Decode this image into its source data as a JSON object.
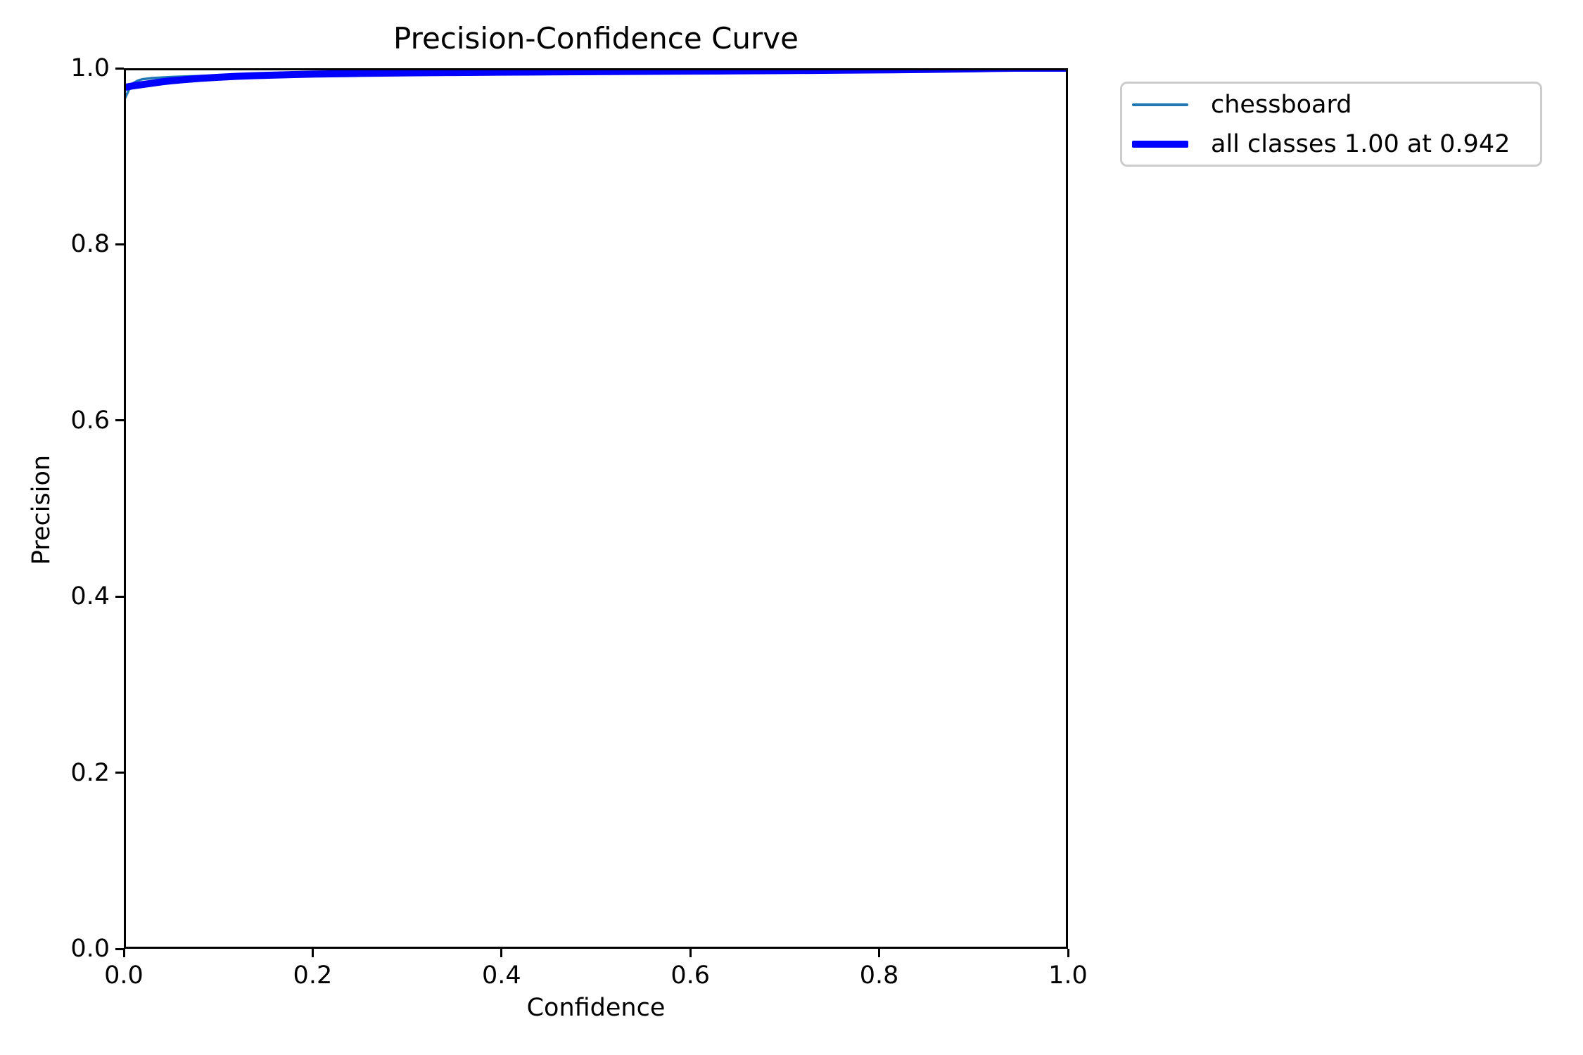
{
  "figure": {
    "background": "#ffffff",
    "axis_color": "#000000",
    "legend_border_color": "#cccccc"
  },
  "chart_data": {
    "type": "line",
    "title": "Precision-Confidence Curve",
    "xlabel": "Confidence",
    "ylabel": "Precision",
    "xlim": [
      0,
      1
    ],
    "ylim": [
      0,
      1
    ],
    "xticks": [
      "0.0",
      "0.2",
      "0.4",
      "0.6",
      "0.8",
      "1.0"
    ],
    "yticks": [
      "0.0",
      "0.2",
      "0.4",
      "0.6",
      "0.8",
      "1.0"
    ],
    "grid": false,
    "legend_position": "outside-upper-right",
    "series": [
      {
        "name": "chessboard",
        "color": "#1f77b4",
        "linewidth": 3.5,
        "points": [
          [
            0.0,
            0.963
          ],
          [
            0.003,
            0.97
          ],
          [
            0.006,
            0.977
          ],
          [
            0.01,
            0.983
          ],
          [
            0.015,
            0.986
          ],
          [
            0.02,
            0.9875
          ],
          [
            0.03,
            0.9888
          ],
          [
            0.05,
            0.99
          ],
          [
            0.07,
            0.9908
          ],
          [
            0.1,
            0.9916
          ],
          [
            0.13,
            0.9922
          ],
          [
            0.16,
            0.9927
          ],
          [
            0.2,
            0.9933
          ],
          [
            0.25,
            0.9941
          ],
          [
            0.3,
            0.9947
          ],
          [
            0.35,
            0.9951
          ],
          [
            0.4,
            0.9955
          ],
          [
            0.45,
            0.9958
          ],
          [
            0.5,
            0.9961
          ],
          [
            0.55,
            0.9964
          ],
          [
            0.6,
            0.9967
          ],
          [
            0.65,
            0.997
          ],
          [
            0.7,
            0.9973
          ],
          [
            0.75,
            0.9977
          ],
          [
            0.8,
            0.9981
          ],
          [
            0.85,
            0.9986
          ],
          [
            0.9,
            0.9993
          ],
          [
            0.92,
            0.9997
          ],
          [
            0.942,
            1.0
          ],
          [
            1.0,
            1.0
          ]
        ]
      },
      {
        "name": "all classes 1.00 at 0.942",
        "color": "#0000ff",
        "linewidth": 10,
        "points": [
          [
            0.0,
            0.978
          ],
          [
            0.01,
            0.98
          ],
          [
            0.02,
            0.9815
          ],
          [
            0.03,
            0.983
          ],
          [
            0.04,
            0.9845
          ],
          [
            0.05,
            0.9857
          ],
          [
            0.06,
            0.9867
          ],
          [
            0.08,
            0.9884
          ],
          [
            0.1,
            0.9897
          ],
          [
            0.12,
            0.9908
          ],
          [
            0.14,
            0.9916
          ],
          [
            0.16,
            0.9922
          ],
          [
            0.18,
            0.9928
          ],
          [
            0.2,
            0.9933
          ],
          [
            0.25,
            0.9941
          ],
          [
            0.3,
            0.9947
          ],
          [
            0.35,
            0.9951
          ],
          [
            0.4,
            0.9955
          ],
          [
            0.45,
            0.9958
          ],
          [
            0.5,
            0.9961
          ],
          [
            0.55,
            0.9964
          ],
          [
            0.6,
            0.9967
          ],
          [
            0.65,
            0.997
          ],
          [
            0.7,
            0.9973
          ],
          [
            0.75,
            0.9977
          ],
          [
            0.8,
            0.9981
          ],
          [
            0.85,
            0.9986
          ],
          [
            0.9,
            0.9993
          ],
          [
            0.92,
            0.9997
          ],
          [
            0.942,
            1.0
          ],
          [
            1.0,
            1.0
          ]
        ]
      }
    ]
  }
}
